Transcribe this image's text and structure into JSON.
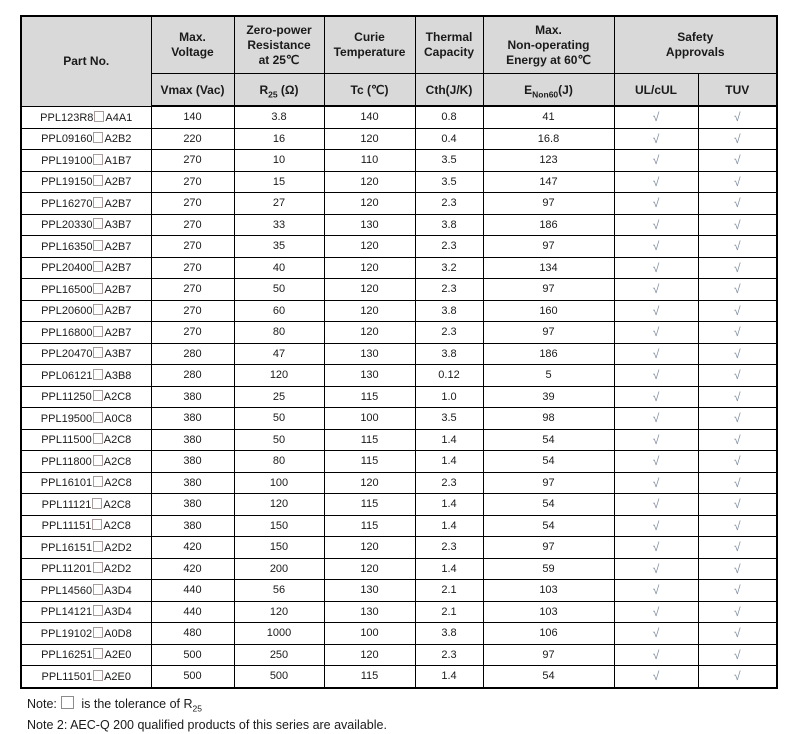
{
  "colors": {
    "header_bg": "#d9d9d9",
    "table_border": "#000000",
    "check_mark_color": "#7e8ca0"
  },
  "table": {
    "header": {
      "part_no": "Part No.",
      "cols": [
        {
          "title": "Max.\nVoltage",
          "unit": "Vmax (Vac)"
        },
        {
          "title": "Zero-power\nResistance\nat 25℃",
          "unit_pre": "R",
          "unit_sub": "25",
          "unit_post": " (Ω)"
        },
        {
          "title": "Curie\nTemperature",
          "unit": "Tc (℃)"
        },
        {
          "title": "Thermal\nCapacity",
          "unit": "Cth(J/K)"
        },
        {
          "title": "Max.\nNon-operating\nEnergy at 60℃",
          "unit_pre": "E",
          "unit_sub": "Non60",
          "unit_post": "(J)"
        }
      ],
      "safety": {
        "title": "Safety\nApprovals",
        "unit1": "UL/cUL",
        "unit2": "TUV"
      }
    },
    "row_schema": [
      "pn_prefix",
      "pn_suffix",
      "vmax_vac",
      "r25_ohm",
      "tc_c",
      "cth_jk",
      "e_non60_j",
      "ul_cul",
      "tuv"
    ],
    "rows": [
      [
        "PPL123R8",
        "A4A1",
        "140",
        "3.8",
        "140",
        "0.8",
        "41",
        "√",
        "√"
      ],
      [
        "PPL09160",
        "A2B2",
        "220",
        "16",
        "120",
        "0.4",
        "16.8",
        "√",
        "√"
      ],
      [
        "PPL19100",
        "A1B7",
        "270",
        "10",
        "110",
        "3.5",
        "123",
        "√",
        "√"
      ],
      [
        "PPL19150",
        "A2B7",
        "270",
        "15",
        "120",
        "3.5",
        "147",
        "√",
        "√"
      ],
      [
        "PPL16270",
        "A2B7",
        "270",
        "27",
        "120",
        "2.3",
        "97",
        "√",
        "√"
      ],
      [
        "PPL20330",
        "A3B7",
        "270",
        "33",
        "130",
        "3.8",
        "186",
        "√",
        "√"
      ],
      [
        "PPL16350",
        "A2B7",
        "270",
        "35",
        "120",
        "2.3",
        "97",
        "√",
        "√"
      ],
      [
        "PPL20400",
        "A2B7",
        "270",
        "40",
        "120",
        "3.2",
        "134",
        "√",
        "√"
      ],
      [
        "PPL16500",
        "A2B7",
        "270",
        "50",
        "120",
        "2.3",
        "97",
        "√",
        "√"
      ],
      [
        "PPL20600",
        "A2B7",
        "270",
        "60",
        "120",
        "3.8",
        "160",
        "√",
        "√"
      ],
      [
        "PPL16800",
        "A2B7",
        "270",
        "80",
        "120",
        "2.3",
        "97",
        "√",
        "√"
      ],
      [
        "PPL20470",
        "A3B7",
        "280",
        "47",
        "130",
        "3.8",
        "186",
        "√",
        "√"
      ],
      [
        "PPL06121",
        "A3B8",
        "280",
        "120",
        "130",
        "0.12",
        "5",
        "√",
        "√"
      ],
      [
        "PPL11250",
        "A2C8",
        "380",
        "25",
        "115",
        "1.0",
        "39",
        "√",
        "√"
      ],
      [
        "PPL19500",
        "A0C8",
        "380",
        "50",
        "100",
        "3.5",
        "98",
        "√",
        "√"
      ],
      [
        "PPL11500",
        "A2C8",
        "380",
        "50",
        "115",
        "1.4",
        "54",
        "√",
        "√"
      ],
      [
        "PPL11800",
        "A2C8",
        "380",
        "80",
        "115",
        "1.4",
        "54",
        "√",
        "√"
      ],
      [
        "PPL16101",
        "A2C8",
        "380",
        "100",
        "120",
        "2.3",
        "97",
        "√",
        "√"
      ],
      [
        "PPL11121",
        "A2C8",
        "380",
        "120",
        "115",
        "1.4",
        "54",
        "√",
        "√"
      ],
      [
        "PPL11151",
        "A2C8",
        "380",
        "150",
        "115",
        "1.4",
        "54",
        "√",
        "√"
      ],
      [
        "PPL16151",
        "A2D2",
        "420",
        "150",
        "120",
        "2.3",
        "97",
        "√",
        "√"
      ],
      [
        "PPL11201",
        "A2D2",
        "420",
        "200",
        "120",
        "1.4",
        "59",
        "√",
        "√"
      ],
      [
        "PPL14560",
        "A3D4",
        "440",
        "56",
        "130",
        "2.1",
        "103",
        "√",
        "√"
      ],
      [
        "PPL14121",
        "A3D4",
        "440",
        "120",
        "130",
        "2.1",
        "103",
        "√",
        "√"
      ],
      [
        "PPL19102",
        "A0D8",
        "480",
        "1000",
        "100",
        "3.8",
        "106",
        "√",
        "√"
      ],
      [
        "PPL16251",
        "A2E0",
        "500",
        "250",
        "120",
        "2.3",
        "97",
        "√",
        "√"
      ],
      [
        "PPL11501",
        "A2E0",
        "500",
        "500",
        "115",
        "1.4",
        "54",
        "√",
        "√"
      ]
    ]
  },
  "notes": {
    "note1_pre": "Note:",
    "note1_mid": " is the tolerance of R",
    "note1_sub": "25",
    "note2": "Note 2: AEC-Q 200 qualified products of this series are available."
  }
}
